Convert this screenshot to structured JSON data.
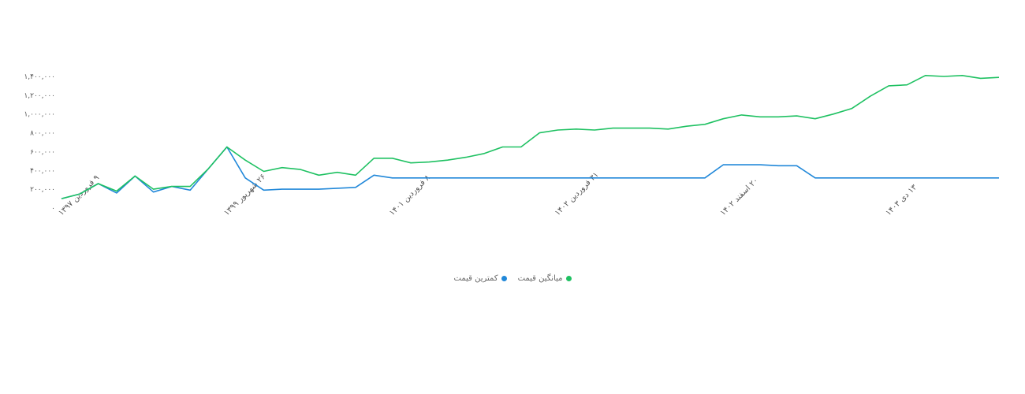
{
  "chart_data": {
    "type": "line",
    "y_ticks": [
      "۰",
      "۲۰۰,۰۰۰",
      "۴۰۰,۰۰۰",
      "۶۰۰,۰۰۰",
      "۸۰۰,۰۰۰",
      "۱,۰۰۰,۰۰۰",
      "۱,۲۰۰,۰۰۰",
      "۱,۴۰۰,۰۰۰"
    ],
    "ylim": [
      0,
      1400000
    ],
    "x_tick_labels": [
      {
        "index": 0,
        "label": "۹ فروردین ۱۳۹۷"
      },
      {
        "index": 9,
        "label": "۲۶ شهریور ۱۳۹۹"
      },
      {
        "index": 18,
        "label": "۸ فروردین ۱۴۰۱"
      },
      {
        "index": 27,
        "label": "۳۱ فروردین ۱۴۰۲"
      },
      {
        "index": 36,
        "label": "۲۰ اسفند ۱۴۰۲"
      },
      {
        "index": 45,
        "label": "۱۳ دی ۱۴۰۳"
      }
    ],
    "point_count": 52,
    "series": [
      {
        "name": "میانگین قیمت",
        "color": "#1fc162",
        "values": [
          100000,
          150000,
          260000,
          180000,
          340000,
          200000,
          230000,
          230000,
          420000,
          650000,
          510000,
          390000,
          430000,
          410000,
          350000,
          380000,
          350000,
          530000,
          530000,
          480000,
          490000,
          510000,
          540000,
          580000,
          650000,
          650000,
          800000,
          830000,
          840000,
          830000,
          850000,
          850000,
          850000,
          840000,
          870000,
          890000,
          950000,
          990000,
          970000,
          970000,
          980000,
          950000,
          1000000,
          1060000,
          1190000,
          1300000,
          1310000,
          1410000,
          1400000,
          1410000,
          1380000,
          1390000
        ]
      },
      {
        "name": "کمترین قیمت",
        "color": "#2188d9",
        "values": [
          100000,
          150000,
          260000,
          160000,
          340000,
          170000,
          230000,
          190000,
          420000,
          650000,
          320000,
          190000,
          200000,
          200000,
          200000,
          210000,
          220000,
          350000,
          320000,
          320000,
          320000,
          320000,
          320000,
          320000,
          320000,
          320000,
          320000,
          320000,
          320000,
          320000,
          320000,
          320000,
          320000,
          320000,
          320000,
          320000,
          460000,
          460000,
          460000,
          450000,
          450000,
          320000,
          320000,
          320000,
          320000,
          320000,
          320000,
          320000,
          320000,
          320000,
          320000,
          320000
        ]
      }
    ],
    "grid": false,
    "legend_position": "bottom-center"
  },
  "legend": {
    "avg_label": "میانگین قیمت",
    "min_label": "کمترین قیمت"
  }
}
